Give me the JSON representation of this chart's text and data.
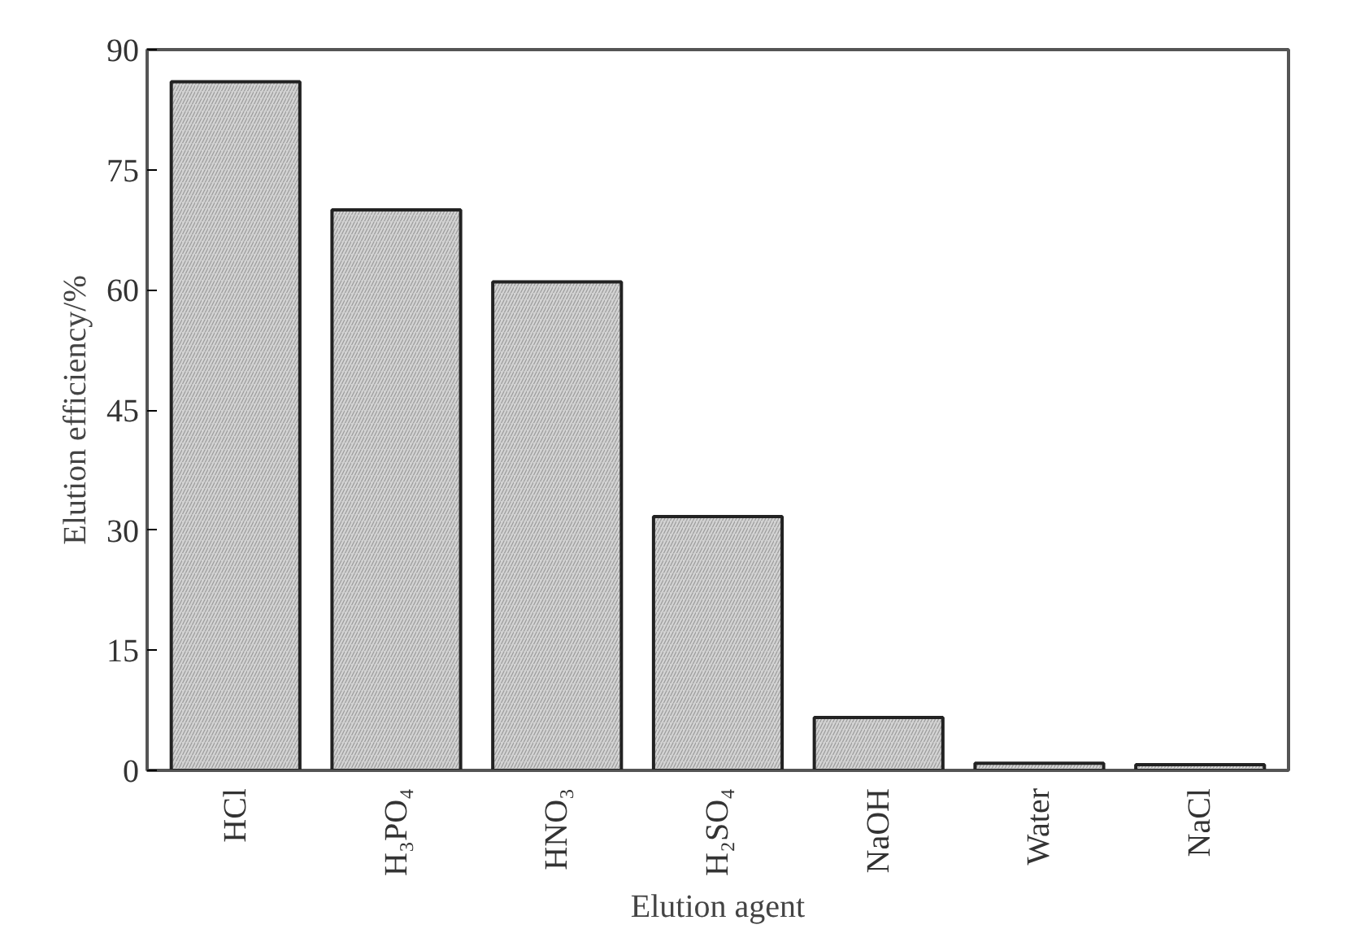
{
  "chart_data": {
    "type": "bar",
    "xlabel": "Elution agent",
    "ylabel": "Elution efficiency/%",
    "categories": [
      "HCl",
      "H₃PO₄",
      "HNO₃",
      "H₂SO₄",
      "NaOH",
      "Water",
      "NaCl"
    ],
    "values": [
      86,
      70,
      61,
      31.7,
      6.6,
      0.9,
      0.7
    ],
    "color": "#d3d3d3",
    "ylim": [
      0,
      90
    ],
    "yticks": [
      0,
      15,
      30,
      45,
      60,
      75,
      90
    ],
    "grid": false
  }
}
